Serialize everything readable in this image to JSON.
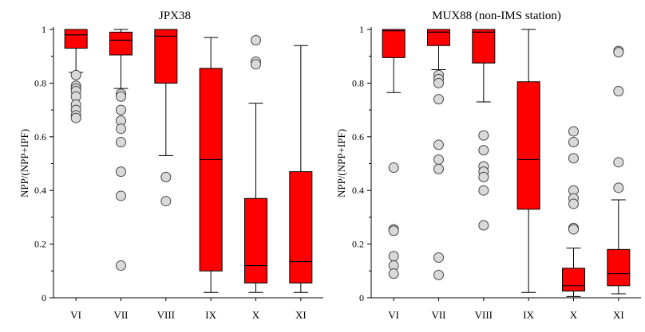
{
  "chart_data": [
    {
      "type": "boxplot",
      "title": "JPX38",
      "ylabel": "NPP/(NPP+IPF)",
      "xlabel": "",
      "ylim": [
        0,
        1
      ],
      "yticks": [
        0,
        0.2,
        0.4,
        0.6,
        0.8,
        1
      ],
      "ytick_labels": [
        "0",
        "0.2",
        "0.4",
        "0.6",
        "0.8",
        "1"
      ],
      "box_color": "#ff0000",
      "categories": [
        "VI",
        "VII",
        "VIII",
        "IX",
        "X",
        "XI"
      ],
      "boxes": [
        {
          "category": "VI",
          "whisker_low": 0.84,
          "q1": 0.93,
          "median": 0.98,
          "q3": 1.0,
          "whisker_high": 1.0,
          "outliers": [
            0.83,
            0.79,
            0.78,
            0.77,
            0.75,
            0.72,
            0.7,
            0.68,
            0.67
          ]
        },
        {
          "category": "VII",
          "whisker_low": 0.78,
          "q1": 0.905,
          "median": 0.96,
          "q3": 0.99,
          "whisker_high": 1.0,
          "outliers": [
            0.76,
            0.75,
            0.7,
            0.66,
            0.63,
            0.58,
            0.47,
            0.38,
            0.12
          ]
        },
        {
          "category": "VIII",
          "whisker_low": 0.53,
          "q1": 0.8,
          "median": 0.975,
          "q3": 1.0,
          "whisker_high": 1.0,
          "outliers": [
            0.45,
            0.36
          ]
        },
        {
          "category": "IX",
          "whisker_low": 0.02,
          "q1": 0.1,
          "median": 0.515,
          "q3": 0.855,
          "whisker_high": 0.97,
          "outliers": []
        },
        {
          "category": "X",
          "whisker_low": 0.02,
          "q1": 0.055,
          "median": 0.12,
          "q3": 0.37,
          "whisker_high": 0.725,
          "outliers": [
            0.96,
            0.88,
            0.87
          ]
        },
        {
          "category": "XI",
          "whisker_low": 0.02,
          "q1": 0.055,
          "median": 0.135,
          "q3": 0.47,
          "whisker_high": 0.94,
          "outliers": []
        }
      ]
    },
    {
      "type": "boxplot",
      "title": "MUX88 (non-IMS station)",
      "ylabel": "NPP/(NPP+IPF)",
      "xlabel": "",
      "ylim": [
        0,
        1
      ],
      "yticks": [
        0,
        0.2,
        0.4,
        0.6,
        0.8,
        1
      ],
      "ytick_labels": [
        "0",
        "0.2",
        "0.4",
        "0.6",
        "0.8",
        "1"
      ],
      "box_color": "#ff0000",
      "categories": [
        "VI",
        "VII",
        "VIII",
        "IX",
        "X",
        "XI"
      ],
      "boxes": [
        {
          "category": "VI",
          "whisker_low": 0.765,
          "q1": 0.895,
          "median": 0.995,
          "q3": 1.0,
          "whisker_high": 1.0,
          "outliers": [
            0.485,
            0.255,
            0.25,
            0.155,
            0.12,
            0.09
          ]
        },
        {
          "category": "VII",
          "whisker_low": 0.85,
          "q1": 0.94,
          "median": 0.99,
          "q3": 1.0,
          "whisker_high": 1.0,
          "outliers": [
            0.83,
            0.815,
            0.8,
            0.74,
            0.57,
            0.515,
            0.48,
            0.15,
            0.085
          ]
        },
        {
          "category": "VIII",
          "whisker_low": 0.73,
          "q1": 0.875,
          "median": 0.99,
          "q3": 1.0,
          "whisker_high": 1.0,
          "outliers": [
            0.605,
            0.55,
            0.49,
            0.47,
            0.45,
            0.4,
            0.27
          ]
        },
        {
          "category": "IX",
          "whisker_low": 0.02,
          "q1": 0.33,
          "median": 0.515,
          "q3": 0.805,
          "whisker_high": 1.0,
          "outliers": []
        },
        {
          "category": "X",
          "whisker_low": 0.005,
          "q1": 0.025,
          "median": 0.045,
          "q3": 0.11,
          "whisker_high": 0.185,
          "outliers": [
            0.62,
            0.58,
            0.52,
            0.4,
            0.37,
            0.35,
            0.26,
            0.255
          ]
        },
        {
          "category": "XI",
          "whisker_low": 0.015,
          "q1": 0.045,
          "median": 0.09,
          "q3": 0.18,
          "whisker_high": 0.365,
          "outliers": [
            0.92,
            0.915,
            0.77,
            0.505,
            0.41
          ]
        }
      ]
    }
  ]
}
